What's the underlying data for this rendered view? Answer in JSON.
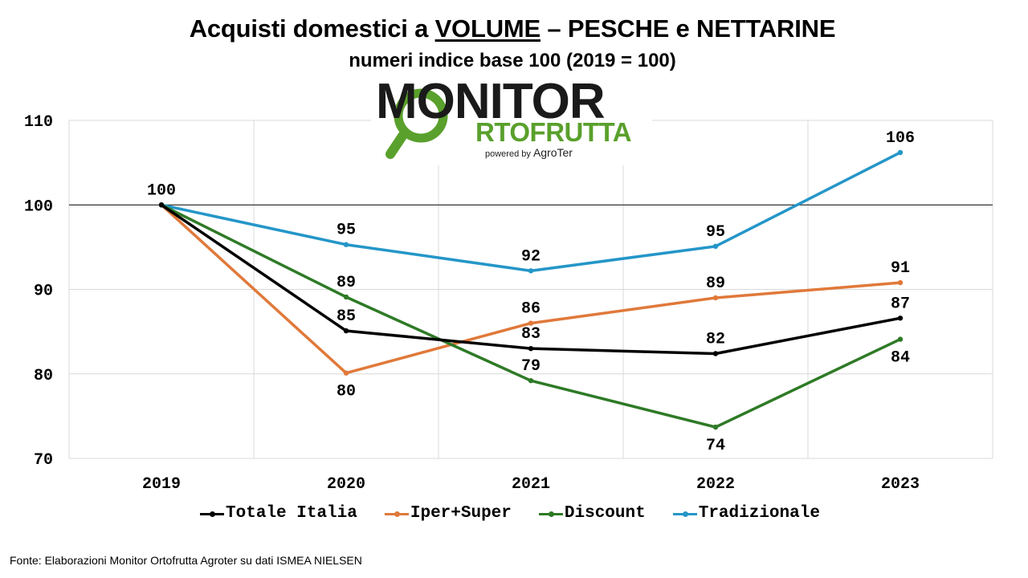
{
  "title_prefix": "Acquisti domestici a ",
  "title_emphasis": "VOLUME",
  "title_suffix": " – PESCHE e NETTARINE",
  "subtitle": "numeri indice base 100 (2019 = 100)",
  "logo": {
    "brand": "MONITOR",
    "brand_sub": "RTOFRUTTA",
    "powered_prefix": "powered by ",
    "powered_name": "AgroTer"
  },
  "source": "Fonte: Elaborazioni Monitor Ortofrutta Agroter su dati ISMEA NIELSEN",
  "chart_data": {
    "type": "line",
    "categories": [
      "2019",
      "2020",
      "2021",
      "2022",
      "2023"
    ],
    "ylim": [
      70,
      110
    ],
    "yticks": [
      70,
      80,
      90,
      100,
      110
    ],
    "reference_line": 100,
    "grid": true,
    "legend_position": "bottom",
    "series": [
      {
        "name": "Totale Italia",
        "color": "#000000",
        "values": [
          100,
          85.1,
          83.0,
          82.4,
          86.6
        ],
        "labels": [
          "",
          "85",
          "83",
          "82",
          "87"
        ],
        "label_pos": [
          "above",
          "above",
          "above",
          "above",
          "above"
        ]
      },
      {
        "name": "Iper+Super",
        "color": "#e0793a",
        "values": [
          100,
          80.1,
          86.0,
          89.0,
          90.8
        ],
        "labels": [
          "",
          "80",
          "86",
          "89",
          "91"
        ],
        "label_pos": [
          "above",
          "below",
          "above",
          "above",
          "above"
        ]
      },
      {
        "name": "Discount",
        "color": "#2e7a26",
        "values": [
          100,
          89.1,
          79.2,
          73.7,
          84.1
        ],
        "labels": [
          "",
          "89",
          "79",
          "74",
          "84"
        ],
        "label_pos": [
          "above",
          "above",
          "above",
          "below",
          "below"
        ]
      },
      {
        "name": "Tradizionale",
        "color": "#2496c8",
        "values": [
          100,
          95.3,
          92.2,
          95.1,
          106.2
        ],
        "labels": [
          "100",
          "95",
          "92",
          "95",
          "106"
        ],
        "label_pos": [
          "above",
          "above",
          "above",
          "above",
          "above"
        ]
      }
    ]
  }
}
